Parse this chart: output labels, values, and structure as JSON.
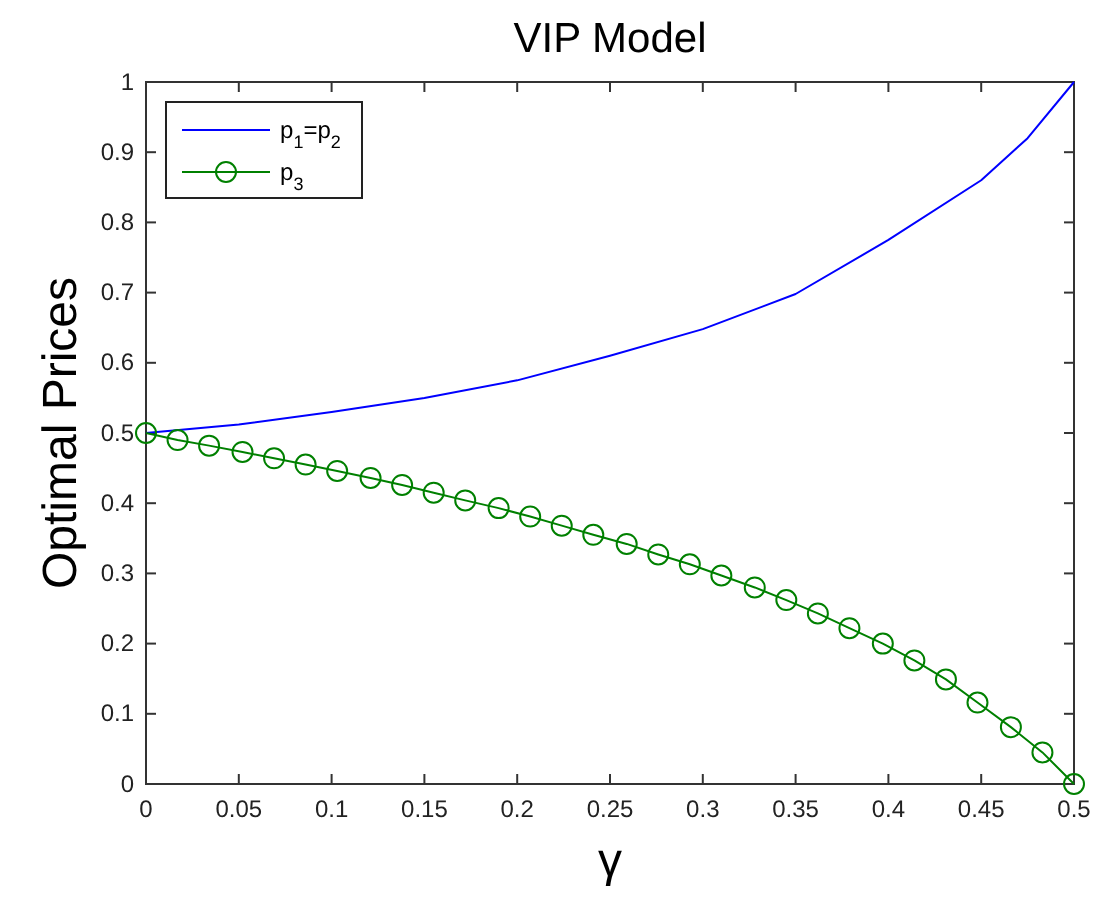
{
  "chart_data": {
    "type": "line",
    "title": "VIP Model",
    "xlabel": "γ",
    "ylabel": "Optimal Prices",
    "xlim": [
      0,
      0.5
    ],
    "xticks": [
      0,
      0.05,
      0.1,
      0.15,
      0.2,
      0.25,
      0.3,
      0.35,
      0.4,
      0.45,
      0.5
    ],
    "ylim": [
      0,
      1
    ],
    "yticks": [
      0,
      0.1,
      0.2,
      0.3,
      0.4,
      0.5,
      0.6,
      0.7,
      0.8,
      0.9,
      1
    ],
    "grid": false,
    "legend": "top left",
    "series": [
      {
        "name": "p$_{1}$=p$_{2}$",
        "color": "#0000ff",
        "marker": "none",
        "x": [
          0,
          0.05,
          0.1,
          0.15,
          0.2,
          0.25,
          0.3,
          0.35,
          0.4,
          0.45,
          0.475,
          0.5
        ],
        "values": [
          0.5,
          0.512,
          0.53,
          0.55,
          0.575,
          0.61,
          0.648,
          0.698,
          0.775,
          0.86,
          0.92,
          1
        ]
      },
      {
        "name": "p$_{3}$",
        "color": "#008000",
        "marker": "circle",
        "x": [
          0,
          0.017,
          0.034,
          0.052,
          0.069,
          0.086,
          0.103,
          0.121,
          0.138,
          0.155,
          0.172,
          0.19,
          0.207,
          0.224,
          0.241,
          0.259,
          0.276,
          0.293,
          0.31,
          0.328,
          0.345,
          0.362,
          0.379,
          0.397,
          0.414,
          0.431,
          0.448,
          0.466,
          0.483,
          0.5
        ],
        "values": [
          0.5,
          0.49,
          0.482,
          0.473,
          0.464,
          0.455,
          0.446,
          0.436,
          0.426,
          0.415,
          0.404,
          0.393,
          0.381,
          0.368,
          0.355,
          0.342,
          0.327,
          0.313,
          0.297,
          0.28,
          0.262,
          0.243,
          0.222,
          0.2,
          0.176,
          0.149,
          0.116,
          0.081,
          0.045,
          0
        ]
      }
    ]
  }
}
